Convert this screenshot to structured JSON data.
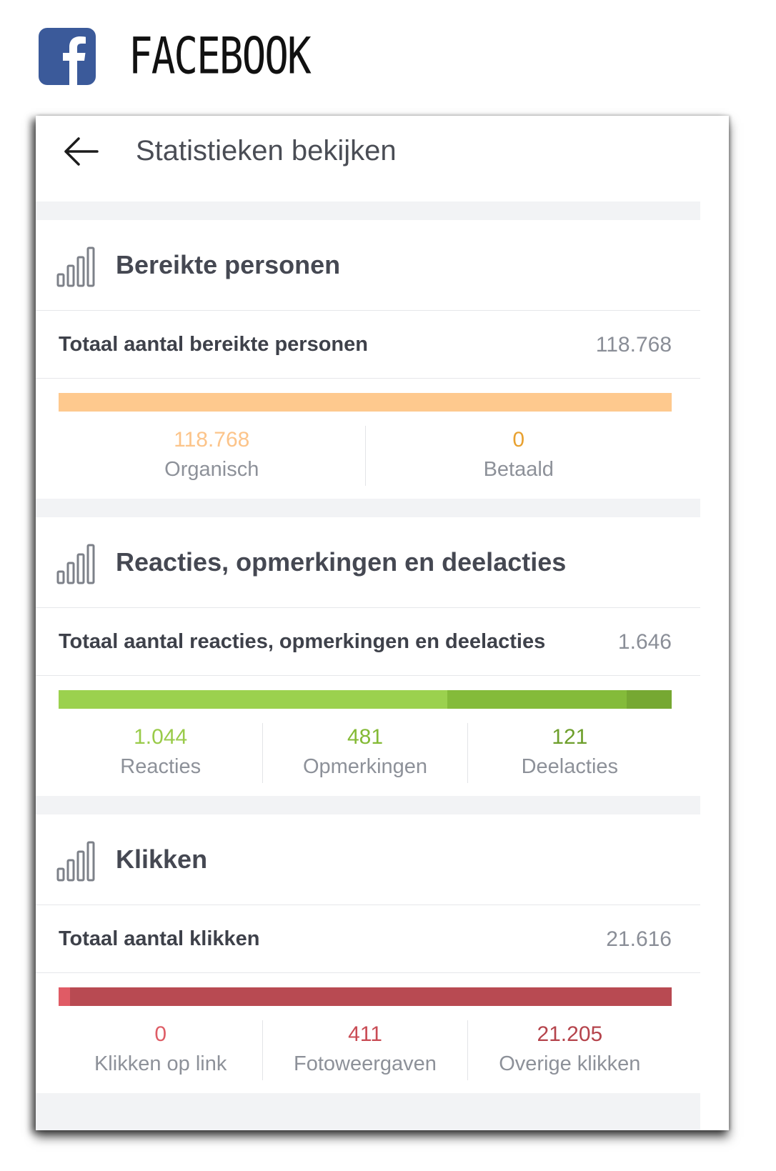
{
  "brand": {
    "name": "FACEBOOK"
  },
  "header": {
    "title": "Statistieken bekijken"
  },
  "sections": [
    {
      "title": "Bereikte personen",
      "total_label": "Totaal aantal bereikte personen",
      "total_value": "118.768",
      "bar_fractions": [
        1.0,
        0.0
      ],
      "bar_colors": [
        "#fec98e",
        "#f4a43a"
      ],
      "metrics": [
        {
          "value": "118.768",
          "label": "Organisch",
          "color": "#fcc48a"
        },
        {
          "value": "0",
          "label": "Betaald",
          "color": "#e8a130"
        }
      ]
    },
    {
      "title": "Reacties, opmerkingen en deelacties",
      "total_label": "Totaal aantal reacties, opmerkingen en deelacties",
      "total_value": "1.646",
      "bar_fractions": [
        0.634,
        0.292,
        0.074
      ],
      "bar_colors": [
        "#9bd14e",
        "#84bb3a",
        "#76a832"
      ],
      "metrics": [
        {
          "value": "1.044",
          "label": "Reacties",
          "color": "#9acb4a"
        },
        {
          "value": "481",
          "label": "Opmerkingen",
          "color": "#84ba36"
        },
        {
          "value": "121",
          "label": "Deelacties",
          "color": "#6e9f2c"
        }
      ]
    },
    {
      "title": "Klikken",
      "total_label": "Totaal aantal klikken",
      "total_value": "21.616",
      "bar_fractions": [
        0.0,
        0.019,
        0.981
      ],
      "bar_colors": [
        "#e55a63",
        "#e05b65",
        "#b84a52"
      ],
      "metrics": [
        {
          "value": "0",
          "label": "Klikken op link",
          "color": "#de5d66"
        },
        {
          "value": "411",
          "label": "Fotoweergaven",
          "color": "#c94c55"
        },
        {
          "value": "21.205",
          "label": "Overige klikken",
          "color": "#b5444c"
        }
      ]
    }
  ]
}
